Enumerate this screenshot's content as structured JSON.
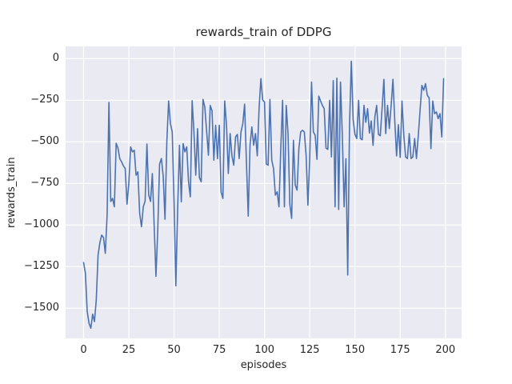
{
  "figure": {
    "background": "#ffffff"
  },
  "chart_data": {
    "type": "line",
    "title": "rewards_train of DDPG",
    "xlabel": "episodes",
    "ylabel": "rewards_train",
    "x_ticks": [
      0,
      25,
      50,
      75,
      100,
      125,
      150,
      175,
      200
    ],
    "y_ticks": [
      0,
      -250,
      -500,
      -750,
      -1000,
      -1250,
      -1500
    ],
    "xlim": [
      -9.95,
      208.95
    ],
    "ylim": [
      -1681,
      74
    ],
    "grid": "on",
    "legend_position": "none",
    "colors": {
      "line": "#4c72b0",
      "plot_background": "#eaeaf2",
      "grid": "#ffffff",
      "text": "#262626"
    },
    "series": [
      {
        "name": "rewards_train",
        "x_start": 0,
        "x_step": 1,
        "values": [
          -1225,
          -1290,
          -1520,
          -1590,
          -1620,
          -1535,
          -1580,
          -1450,
          -1180,
          -1105,
          -1060,
          -1075,
          -1170,
          -940,
          -263,
          -858,
          -840,
          -890,
          -508,
          -537,
          -601,
          -620,
          -644,
          -660,
          -874,
          -750,
          -530,
          -560,
          -550,
          -700,
          -680,
          -930,
          -1010,
          -890,
          -855,
          -513,
          -820,
          -858,
          -690,
          -1000,
          -1308,
          -1030,
          -633,
          -600,
          -706,
          -965,
          -500,
          -254,
          -390,
          -440,
          -860,
          -1365,
          -900,
          -520,
          -860,
          -510,
          -560,
          -530,
          -740,
          -830,
          -252,
          -440,
          -700,
          -420,
          -714,
          -740,
          -245,
          -290,
          -435,
          -580,
          -281,
          -313,
          -610,
          -400,
          -601,
          -400,
          -802,
          -840,
          -254,
          -400,
          -690,
          -450,
          -584,
          -640,
          -470,
          -455,
          -600,
          -440,
          -390,
          -273,
          -620,
          -946,
          -520,
          -410,
          -520,
          -450,
          -584,
          -297,
          -120,
          -249,
          -260,
          -633,
          -640,
          -245,
          -610,
          -660,
          -820,
          -800,
          -890,
          -540,
          -250,
          -890,
          -280,
          -450,
          -874,
          -960,
          -490,
          -760,
          -790,
          -540,
          -440,
          -430,
          -440,
          -580,
          -880,
          -600,
          -140,
          -440,
          -460,
          -605,
          -225,
          -254,
          -281,
          -300,
          -537,
          -545,
          -250,
          -590,
          -132,
          -890,
          -116,
          -906,
          -140,
          -455,
          -890,
          -601,
          -1300,
          -400,
          -15,
          -366,
          -455,
          -480,
          -250,
          -480,
          -487,
          -280,
          -382,
          -300,
          -447,
          -374,
          -521,
          -350,
          -281,
          -455,
          -463,
          -297,
          -124,
          -450,
          -280,
          -420,
          -281,
          -124,
          -370,
          -584,
          -396,
          -593,
          -254,
          -460,
          -590,
          -600,
          -450,
          -600,
          -590,
          -480,
          -600,
          -463,
          -310,
          -160,
          -190,
          -150,
          -220,
          -235,
          -540,
          -254,
          -330,
          -320,
          -360,
          -330,
          -470,
          -120
        ]
      }
    ]
  }
}
